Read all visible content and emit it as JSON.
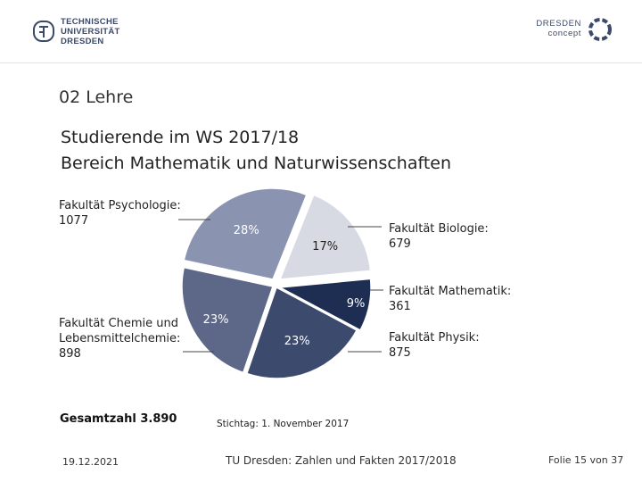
{
  "header": {
    "tud_logo": [
      "TECHNISCHE",
      "UNIVERSITÄT",
      "DRESDEN"
    ],
    "dresden_concept": [
      "DRESDEN",
      "concept"
    ]
  },
  "section": "02 Lehre",
  "title_line1": "Studierende im WS 2017/18",
  "title_line2": "Bereich Mathematik und Naturwissenschaften",
  "chart_data": {
    "type": "pie",
    "slices": [
      {
        "label": "Fakultät Biologie:",
        "value": 679,
        "percent": "17%",
        "color": "#d7dae3"
      },
      {
        "label": "Fakultät Mathematik:",
        "value": 361,
        "percent": "9%",
        "color": "#1e2d52"
      },
      {
        "label": "Fakultät Physik:",
        "value": 875,
        "percent": "23%",
        "color": "#3c4a6e"
      },
      {
        "label": "Fakultät Chemie und Lebensmittelchemie:",
        "value": 898,
        "percent": "23%",
        "color": "#5d6787"
      },
      {
        "label": "Fakultät Psychologie:",
        "value": 1077,
        "percent": "28%",
        "color": "#8a94b0"
      }
    ]
  },
  "labels": {
    "psychologie": {
      "line1": "Fakultät Psychologie:",
      "value": "1077"
    },
    "chemie": {
      "line1": "Fakultät Chemie und",
      "line2": "Lebensmittelchemie:",
      "value": "898"
    },
    "biologie": {
      "line1": "Fakultät Biologie:",
      "value": "679"
    },
    "mathematik": {
      "line1": "Fakultät Mathematik:",
      "value": "361"
    },
    "physik": {
      "line1": "Fakultät Physik:",
      "value": "875"
    }
  },
  "total": "Gesamtzahl 3.890",
  "stichtag": "Stichtag: 1. November 2017",
  "footer": {
    "date": "19.12.2021",
    "center": "TU Dresden: Zahlen und Fakten 2017/2018",
    "folie": "Folie 15 von 37"
  }
}
